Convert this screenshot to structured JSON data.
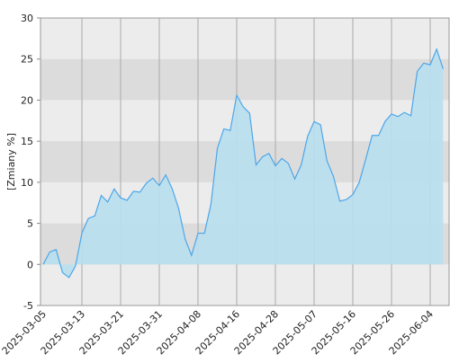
{
  "chart_data": {
    "type": "area",
    "y_label": "[Zmiany %]",
    "categories": [
      "2025-03-05",
      null,
      null,
      null,
      null,
      null,
      "2025-03-13",
      null,
      null,
      null,
      null,
      null,
      "2025-03-21",
      null,
      null,
      null,
      null,
      null,
      "2025-03-31",
      null,
      null,
      null,
      null,
      null,
      "2025-04-08",
      null,
      null,
      null,
      null,
      null,
      "2025-04-16",
      null,
      null,
      null,
      null,
      null,
      "2025-04-28",
      null,
      null,
      null,
      null,
      null,
      "2025-05-07",
      null,
      null,
      null,
      null,
      null,
      "2025-05-16",
      null,
      null,
      null,
      null,
      null,
      "2025-05-26",
      null,
      null,
      null,
      null,
      null,
      "2025-06-04",
      null,
      null
    ],
    "values": [
      0,
      1.5,
      1.8,
      -1,
      -1.6,
      -0.2,
      3.8,
      5.6,
      5.9,
      8.4,
      7.6,
      9.2,
      8.1,
      7.8,
      8.9,
      8.8,
      9.9,
      10.5,
      9.6,
      10.9,
      9.2,
      6.8,
      3.1,
      1.1,
      3.8,
      3.8,
      7.3,
      14.1,
      16.5,
      16.3,
      20.6,
      19.2,
      18.4,
      12.1,
      13.1,
      13.5,
      12.0,
      12.9,
      12.3,
      10.4,
      12.1,
      15.6,
      17.4,
      17.0,
      12.6,
      10.7,
      7.7,
      7.9,
      8.5,
      10.0,
      12.8,
      15.7,
      15.7,
      17.4,
      18.3,
      18.0,
      18.5,
      18.1,
      23.5,
      24.5,
      24.3,
      26.2,
      23.8
    ],
    "line_color": "#4da6e8",
    "fill_color": "#b8dff0",
    "ylim": [
      -5,
      30
    ],
    "yticks": [
      -5,
      0,
      5,
      10,
      15,
      20,
      25,
      30
    ],
    "bands": true,
    "grid": true
  }
}
